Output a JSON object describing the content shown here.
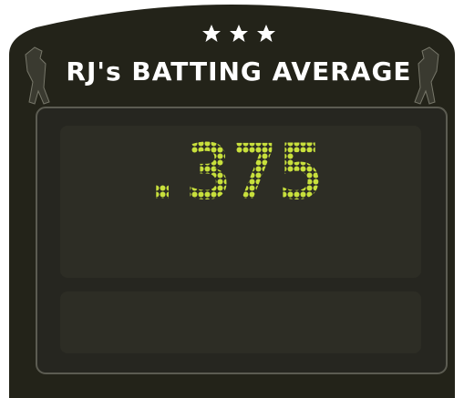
{
  "header": {
    "title": "RJ's BATTING AVERAGE"
  },
  "scoreboard": {
    "display": ".375"
  }
}
